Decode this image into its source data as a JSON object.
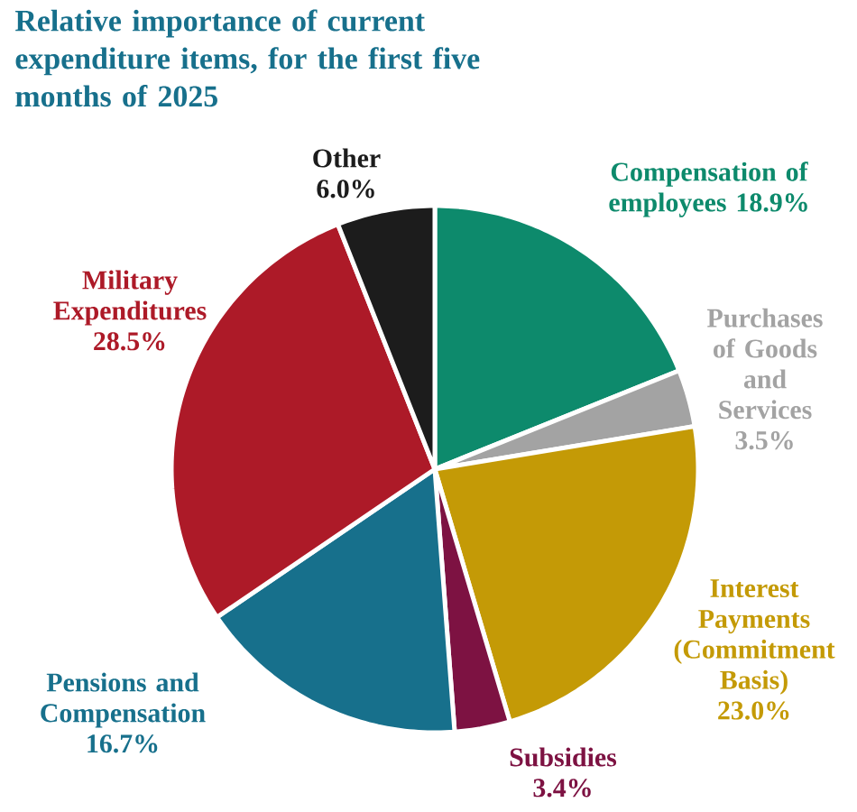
{
  "chart_data": {
    "type": "pie",
    "title": "Relative importance of current expenditure items, for the first five months of 2025",
    "categories": [
      "Compensation of employees",
      "Purchases of Goods and Services",
      "Interest Payments (Commitment Basis)",
      "Subsidies",
      "Pensions and Compensation",
      "Military Expenditures",
      "Other"
    ],
    "values": [
      18.9,
      3.5,
      23.0,
      3.4,
      16.7,
      28.5,
      6.0
    ],
    "value_labels": [
      "18.9%",
      "3.5%",
      "23.0%",
      "3.4%",
      "16.7%",
      "28.5%",
      "6.0%"
    ],
    "colors": [
      "#0d8a6c",
      "#a3a3a3",
      "#c49a06",
      "#7d1242",
      "#17708c",
      "#ad1a28",
      "#1c1c1c"
    ]
  }
}
